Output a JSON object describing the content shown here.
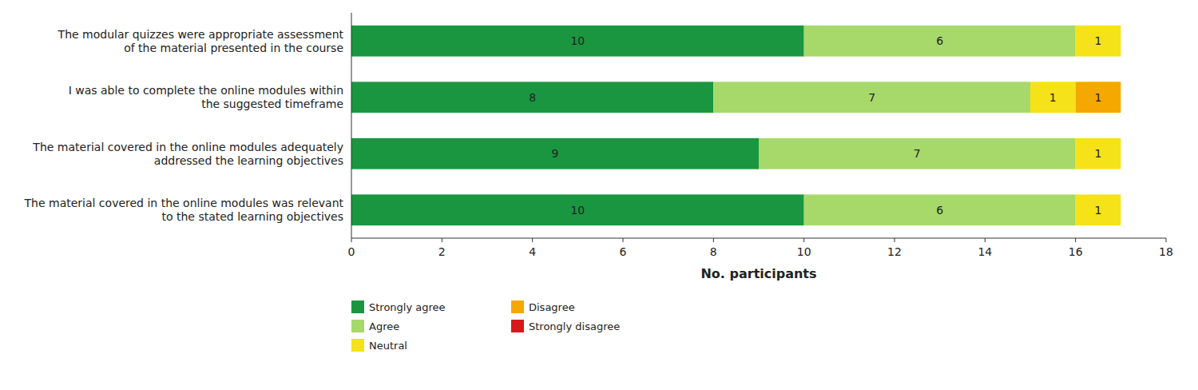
{
  "chart_data": {
    "type": "bar",
    "orientation": "horizontal",
    "stacked": true,
    "data_labels": true,
    "legend": "bottom",
    "grid": false,
    "categories": [
      "The material covered in the online modules was relevant\nto the stated learning objectives",
      "The material covered in the online modules adequately\naddressed the learning objectives",
      "I was able to complete the online modules within\nthe suggested timeframe",
      "The modular quizzes were appropriate assessment\nof the material presented in the course"
    ],
    "series": [
      {
        "name": "Strongly agree",
        "color": "#1a9641",
        "values": [
          10,
          9,
          8,
          10
        ]
      },
      {
        "name": "Agree",
        "color": "#a6d96a",
        "values": [
          6,
          7,
          7,
          6
        ]
      },
      {
        "name": "Neutral",
        "color": "#f5e219",
        "values": [
          1,
          1,
          1,
          1
        ]
      },
      {
        "name": "Disagree",
        "color": "#f5a800",
        "values": [
          0,
          0,
          1,
          0
        ]
      },
      {
        "name": "Strongly disagree",
        "color": "#d7191c",
        "values": [
          0,
          0,
          0,
          0
        ]
      }
    ],
    "xlim": [
      0,
      18
    ],
    "xticks": [
      0,
      2,
      4,
      6,
      8,
      10,
      12,
      14,
      16,
      18
    ],
    "xlabel": "No. participants"
  }
}
